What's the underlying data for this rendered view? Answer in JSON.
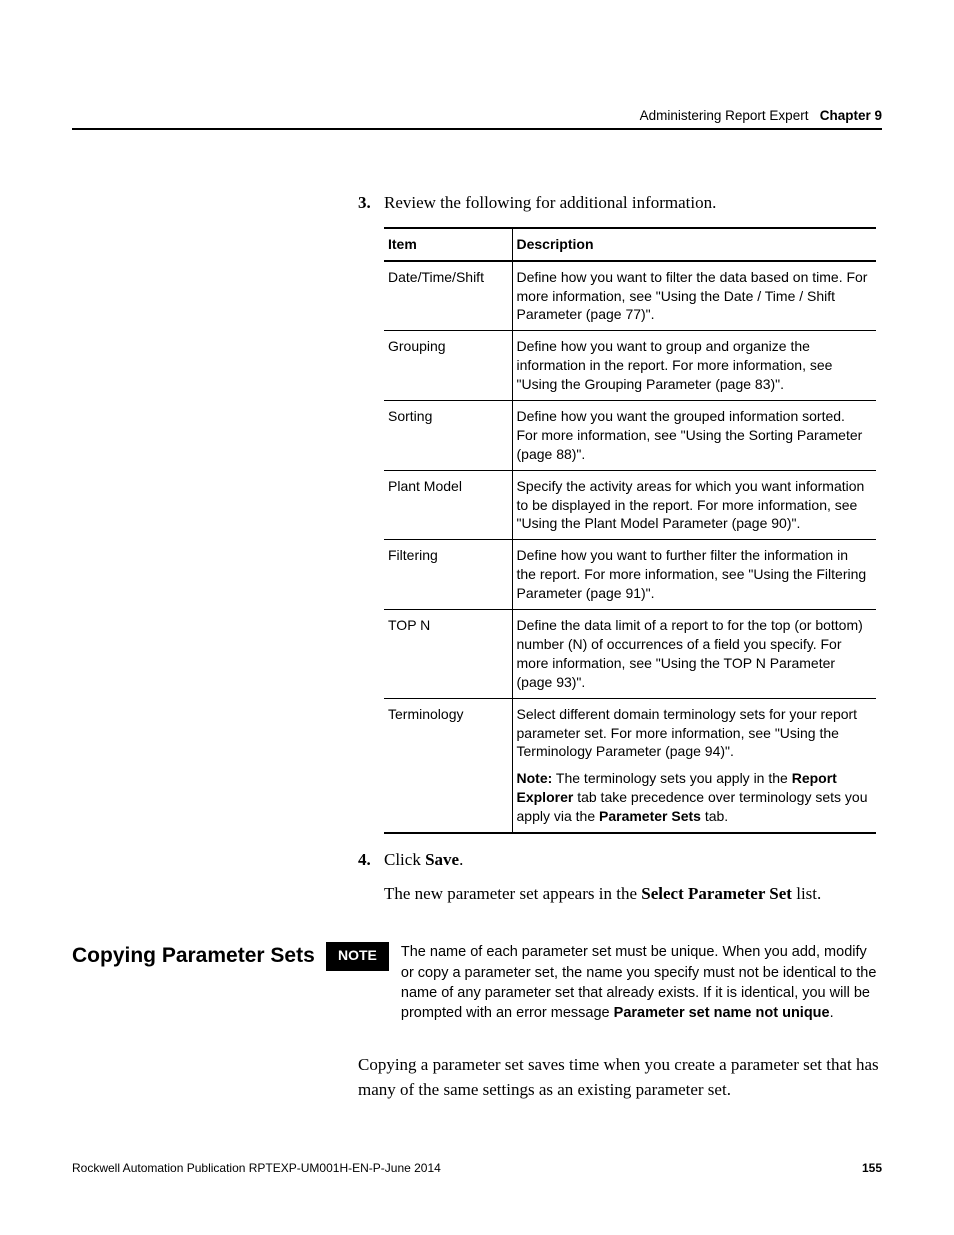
{
  "header": {
    "title_plain": "Administering Report Expert",
    "title_bold": "Chapter 9"
  },
  "step3": {
    "num": "3.",
    "text": "Review the following for additional information."
  },
  "table": {
    "headers": {
      "item": "Item",
      "desc": "Description"
    },
    "rows": [
      {
        "item": "Date/Time/Shift",
        "desc": "Define how you want to filter the data based on time. For more information, see \"Using the Date / Time / Shift Parameter (page 77)\"."
      },
      {
        "item": "Grouping",
        "desc": "Define how you want to group and organize the information in the report. For more information, see \"Using the Grouping Parameter (page 83)\"."
      },
      {
        "item": "Sorting",
        "desc": "Define how you want the grouped information sorted. For more information, see \"Using the Sorting Parameter (page 88)\"."
      },
      {
        "item": "Plant Model",
        "desc": "Specify the activity areas for which you want information to be displayed in the report. For more information, see \"Using the Plant Model Parameter (page 90)\"."
      },
      {
        "item": "Filtering",
        "desc": "Define how you want to further filter the information in the report. For more information, see \"Using the Filtering Parameter (page 91)\"."
      },
      {
        "item": "TOP N",
        "desc": "Define the data limit of a report to for the top (or bottom) number (N) of occurrences of a field you specify. For more information, see \"Using the TOP N Parameter (page 93)\"."
      }
    ],
    "terminology": {
      "item": "Terminology",
      "desc": "Select different domain terminology sets for your report parameter set. For more information, see \"Using the Terminology Parameter (page 94)\".",
      "note_label": "Note:",
      "note_1": " The terminology sets you apply in the ",
      "note_b1": "Report Explorer",
      "note_2": " tab take precedence over terminology sets you apply via the ",
      "note_b2": "Parameter Sets",
      "note_3": " tab."
    }
  },
  "step4": {
    "num": "4.",
    "prefix": "Click ",
    "bold": "Save",
    "suffix": ".",
    "after_1": "The new parameter set appears in the ",
    "after_bold": "Select Parameter Set",
    "after_2": " list."
  },
  "section": {
    "heading": "Copying Parameter Sets",
    "note_badge": "NOTE",
    "note_1": "The name of each parameter set must be unique. When you add, modify or copy a parameter set, the name you specify must not be identical to the name of any parameter set that already exists. If it is identical, you will be prompted with an error message ",
    "note_bold": "Parameter set name not unique",
    "note_2": "."
  },
  "closing": "Copying a parameter set saves time when you create a parameter set that has many of the same settings as an existing parameter set.",
  "footer": {
    "pub": "Rockwell Automation Publication RPTEXP-UM001H-EN-P-June 2014",
    "page": "155"
  }
}
